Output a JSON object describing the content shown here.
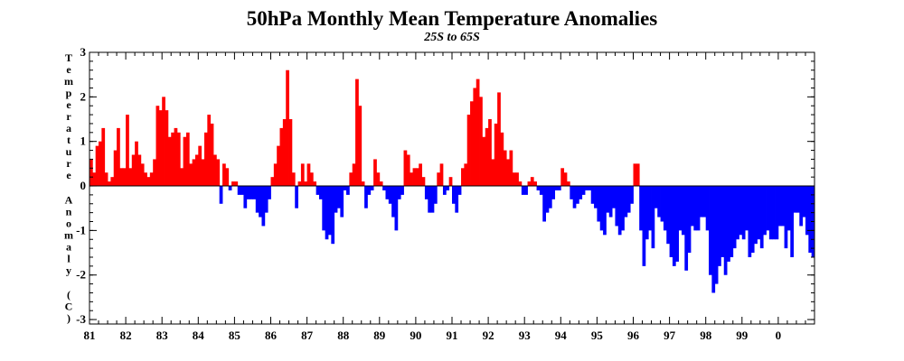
{
  "chart_data": {
    "type": "bar",
    "title": "50hPa Monthly Mean Temperature Anomalies",
    "subtitle": "25S to 65S",
    "xlabel": "",
    "ylabel": "Temperature Anomaly (C)",
    "x_start": "1981-01",
    "x_tick_labels": [
      "81",
      "82",
      "83",
      "84",
      "85",
      "86",
      "87",
      "88",
      "89",
      "90",
      "91",
      "92",
      "93",
      "94",
      "95",
      "96",
      "97",
      "98",
      "99",
      "0"
    ],
    "y_ticks": [
      -3,
      -2,
      -1,
      0,
      1,
      2,
      3
    ],
    "ylim": [
      -3.1,
      3.0
    ],
    "grid": false,
    "colors": {
      "positive": "#ff0000",
      "negative": "#0000ff"
    },
    "series": [
      {
        "values": [
          0.6,
          0.3,
          0.9,
          1.0,
          1.3,
          0.3,
          0.1,
          0.2,
          0.8,
          1.3,
          0.4,
          0.4,
          1.6,
          0.4,
          0.7,
          1.0,
          0.7,
          0.5,
          0.3,
          0.2,
          0.3,
          0.6,
          1.8,
          1.7,
          2.0,
          1.7,
          1.1,
          1.2,
          1.3,
          1.2,
          0.4,
          1.1,
          1.2,
          0.5,
          0.6,
          0.7,
          0.9,
          0.6,
          1.2,
          1.6,
          1.4,
          0.7,
          0.6,
          -0.4,
          0.5,
          0.4,
          -0.1,
          0.1,
          0.1,
          -0.2,
          -0.2,
          -0.5,
          -0.3,
          -0.3,
          -0.3,
          -0.6,
          -0.7,
          -0.9,
          -0.6,
          -0.3,
          0.2,
          0.5,
          0.9,
          1.3,
          1.5,
          2.6,
          1.5,
          0.3,
          -0.5,
          0.1,
          0.5,
          0.1,
          0.5,
          0.3,
          0.1,
          -0.2,
          -0.3,
          -1.0,
          -1.2,
          -1.1,
          -1.3,
          -0.6,
          -0.5,
          -0.7,
          -0.1,
          -0.2,
          0.3,
          0.5,
          2.4,
          1.8,
          0.1,
          -0.5,
          -0.2,
          -0.1,
          0.6,
          0.3,
          0.1,
          -0.1,
          -0.3,
          -0.4,
          -0.7,
          -1.0,
          -0.3,
          -0.2,
          0.8,
          0.7,
          0.3,
          0.4,
          0.4,
          0.5,
          0.2,
          -0.3,
          -0.6,
          -0.6,
          -0.4,
          0.3,
          0.5,
          -0.2,
          -0.1,
          0.2,
          -0.4,
          -0.6,
          -0.2,
          0.4,
          0.5,
          1.6,
          1.9,
          2.2,
          2.4,
          2.0,
          1.1,
          1.3,
          1.5,
          0.6,
          1.4,
          2.1,
          1.2,
          0.8,
          0.6,
          0.8,
          0.3,
          0.3,
          0.1,
          -0.2,
          -0.2,
          0.1,
          0.2,
          0.1,
          -0.1,
          -0.2,
          -0.8,
          -0.6,
          -0.5,
          -0.3,
          -0.1,
          -0.1,
          0.4,
          0.3,
          0.1,
          -0.3,
          -0.5,
          -0.4,
          -0.3,
          -0.2,
          -0.1,
          -0.1,
          -0.4,
          -0.5,
          -0.8,
          -1.0,
          -1.1,
          -0.6,
          -0.7,
          -0.5,
          -0.9,
          -1.1,
          -1.0,
          -0.7,
          -0.6,
          -0.4,
          0.5,
          0.5,
          -1.0,
          -1.8,
          -1.2,
          -1.0,
          -1.4,
          -0.5,
          -0.7,
          -0.8,
          -1.0,
          -1.3,
          -1.6,
          -1.8,
          -1.7,
          -1.0,
          -1.1,
          -1.9,
          -1.5,
          -0.9,
          -1.0,
          -1.0,
          -0.7,
          -0.7,
          -1.0,
          -2.0,
          -2.4,
          -2.2,
          -1.8,
          -1.6,
          -2.0,
          -1.7,
          -1.6,
          -1.4,
          -1.2,
          -1.1,
          -1.2,
          -1.0,
          -1.6,
          -1.5,
          -1.3,
          -1.2,
          -1.4,
          -1.1,
          -1.0,
          -1.2,
          -1.2,
          -1.2,
          -0.9,
          -0.9,
          -1.4,
          -1.0,
          -1.6,
          -0.6,
          -0.6,
          -0.9,
          -0.7,
          -1.1,
          -1.5,
          -1.6
        ]
      }
    ]
  }
}
